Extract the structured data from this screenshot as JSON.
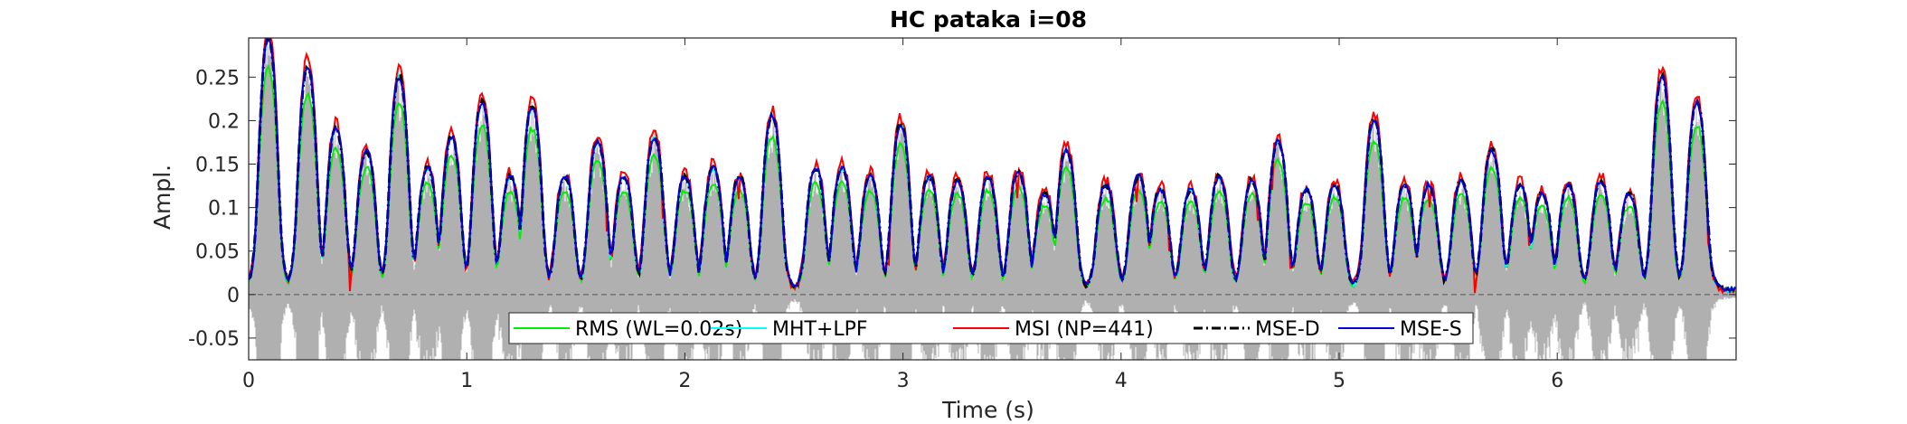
{
  "chart_data": {
    "type": "line",
    "title": "HC pataka i=08",
    "xlabel": "Time (s)",
    "ylabel": "Ampl.",
    "xlim": [
      0,
      6.82
    ],
    "ylim": [
      -0.075,
      0.295
    ],
    "xticks": [
      0,
      1,
      2,
      3,
      4,
      5,
      6
    ],
    "yticks": [
      -0.05,
      0,
      0.05,
      0.1,
      0.15,
      0.2,
      0.25
    ],
    "ytick_labels": [
      "-0.05",
      "0",
      "0.05",
      "0.1",
      "0.15",
      "0.2",
      "0.25"
    ],
    "grid": false,
    "legend_position": "bottom-center",
    "zero_line": {
      "y": 0,
      "style": "dashed",
      "color": "#555555"
    },
    "waveform": {
      "color": "#b0b0b0",
      "max_abs": 0.29
    },
    "syllables": [
      {
        "t": 0.09,
        "a": 0.29
      },
      {
        "t": 0.27,
        "a": 0.255
      },
      {
        "t": 0.4,
        "a": 0.185
      },
      {
        "t": 0.54,
        "a": 0.16
      },
      {
        "t": 0.69,
        "a": 0.245
      },
      {
        "t": 0.82,
        "a": 0.14
      },
      {
        "t": 0.93,
        "a": 0.175
      },
      {
        "t": 1.07,
        "a": 0.215
      },
      {
        "t": 1.2,
        "a": 0.13
      },
      {
        "t": 1.3,
        "a": 0.21
      },
      {
        "t": 1.45,
        "a": 0.13
      },
      {
        "t": 1.6,
        "a": 0.17
      },
      {
        "t": 1.72,
        "a": 0.13
      },
      {
        "t": 1.86,
        "a": 0.175
      },
      {
        "t": 2.0,
        "a": 0.13
      },
      {
        "t": 2.13,
        "a": 0.14
      },
      {
        "t": 2.25,
        "a": 0.13
      },
      {
        "t": 2.4,
        "a": 0.2
      },
      {
        "t": 2.6,
        "a": 0.14
      },
      {
        "t": 2.72,
        "a": 0.14
      },
      {
        "t": 2.85,
        "a": 0.13
      },
      {
        "t": 2.99,
        "a": 0.19
      },
      {
        "t": 3.12,
        "a": 0.13
      },
      {
        "t": 3.25,
        "a": 0.125
      },
      {
        "t": 3.39,
        "a": 0.13
      },
      {
        "t": 3.53,
        "a": 0.135
      },
      {
        "t": 3.65,
        "a": 0.11
      },
      {
        "t": 3.75,
        "a": 0.16
      },
      {
        "t": 3.93,
        "a": 0.12
      },
      {
        "t": 4.08,
        "a": 0.13
      },
      {
        "t": 4.18,
        "a": 0.115
      },
      {
        "t": 4.32,
        "a": 0.115
      },
      {
        "t": 4.45,
        "a": 0.13
      },
      {
        "t": 4.6,
        "a": 0.125
      },
      {
        "t": 4.72,
        "a": 0.17
      },
      {
        "t": 4.85,
        "a": 0.115
      },
      {
        "t": 4.98,
        "a": 0.12
      },
      {
        "t": 5.16,
        "a": 0.195
      },
      {
        "t": 5.3,
        "a": 0.12
      },
      {
        "t": 5.41,
        "a": 0.12
      },
      {
        "t": 5.56,
        "a": 0.125
      },
      {
        "t": 5.7,
        "a": 0.16
      },
      {
        "t": 5.83,
        "a": 0.12
      },
      {
        "t": 5.93,
        "a": 0.11
      },
      {
        "t": 6.05,
        "a": 0.12
      },
      {
        "t": 6.2,
        "a": 0.125
      },
      {
        "t": 6.33,
        "a": 0.11
      },
      {
        "t": 6.48,
        "a": 0.245
      },
      {
        "t": 6.64,
        "a": 0.215
      }
    ],
    "series": [
      {
        "name": "RMS (WL=0.02s)",
        "color": "#00ee00",
        "style": "solid",
        "scale": 0.88
      },
      {
        "name": "MHT+LPF",
        "color": "#00ffff",
        "style": "solid",
        "scale": 1.0
      },
      {
        "name": "MSI (NP=441)",
        "color": "#ff0000",
        "style": "solid",
        "scale": 1.04
      },
      {
        "name": "MSE-D",
        "color": "#000000",
        "style": "dashdot",
        "scale": 1.0
      },
      {
        "name": "MSE-S",
        "color": "#0000dd",
        "style": "solid",
        "scale": 1.0
      }
    ]
  }
}
